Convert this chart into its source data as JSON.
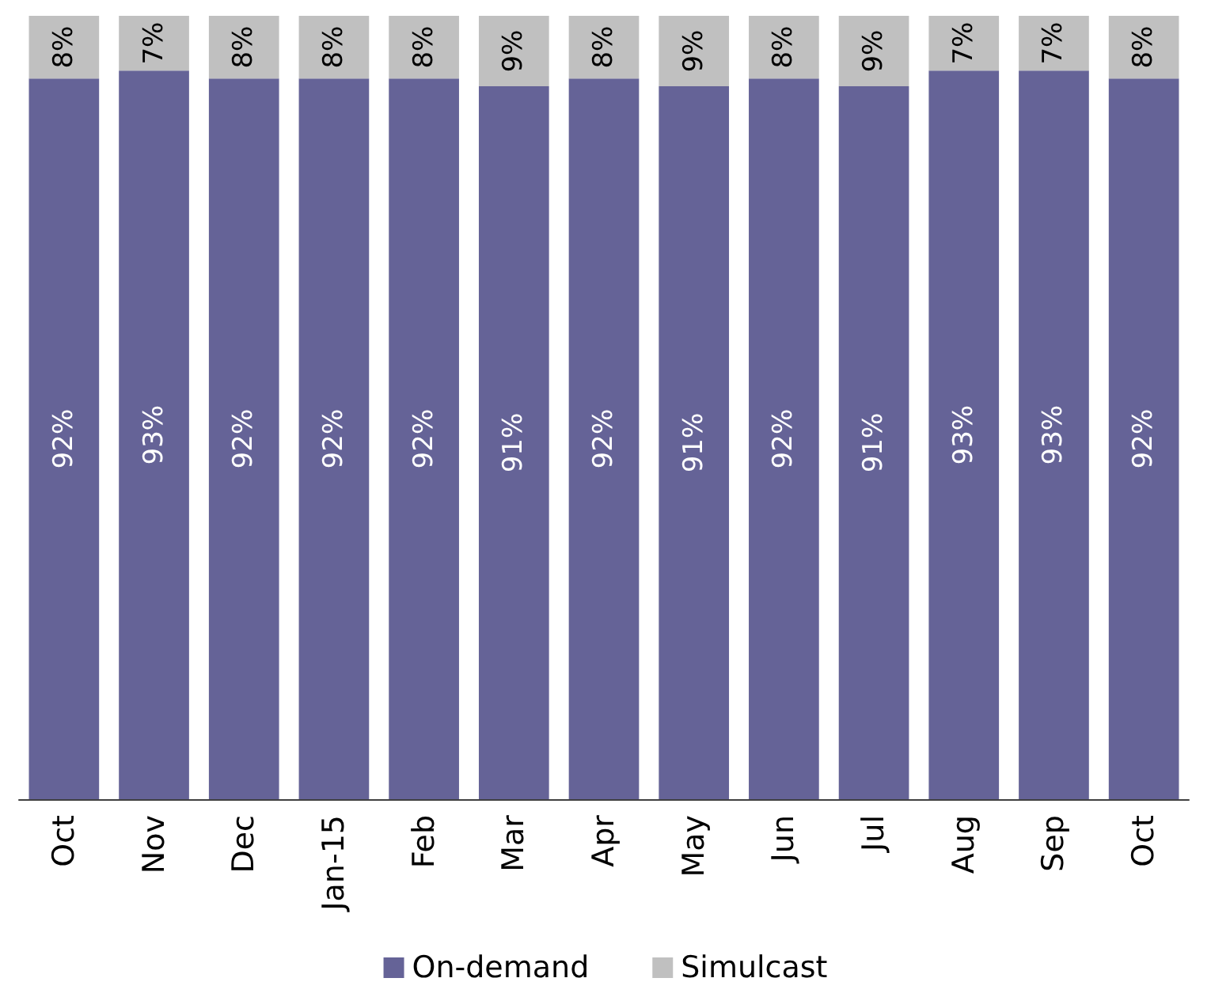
{
  "chart_data": {
    "type": "bar",
    "stacked": true,
    "categories": [
      "Oct",
      "Nov",
      "Dec",
      "Jan-15",
      "Feb",
      "Mar",
      "Apr",
      "May",
      "Jun",
      "Jul",
      "Aug",
      "Sep",
      "Oct"
    ],
    "series": [
      {
        "name": "On-demand",
        "color": "#656397",
        "values": [
          92,
          93,
          92,
          92,
          92,
          91,
          92,
          91,
          92,
          91,
          93,
          93,
          92
        ],
        "value_labels": [
          "92%",
          "93%",
          "92%",
          "92%",
          "92%",
          "91%",
          "92%",
          "91%",
          "92%",
          "91%",
          "93%",
          "93%",
          "92%"
        ]
      },
      {
        "name": "Simulcast",
        "color": "#c0c0c0",
        "values": [
          8,
          7,
          8,
          8,
          8,
          9,
          8,
          9,
          8,
          9,
          7,
          7,
          8
        ],
        "value_labels": [
          "8%",
          "7%",
          "8%",
          "8%",
          "8%",
          "9%",
          "8%",
          "9%",
          "8%",
          "9%",
          "7%",
          "7%",
          "8%"
        ]
      }
    ],
    "legend": "bottom"
  }
}
